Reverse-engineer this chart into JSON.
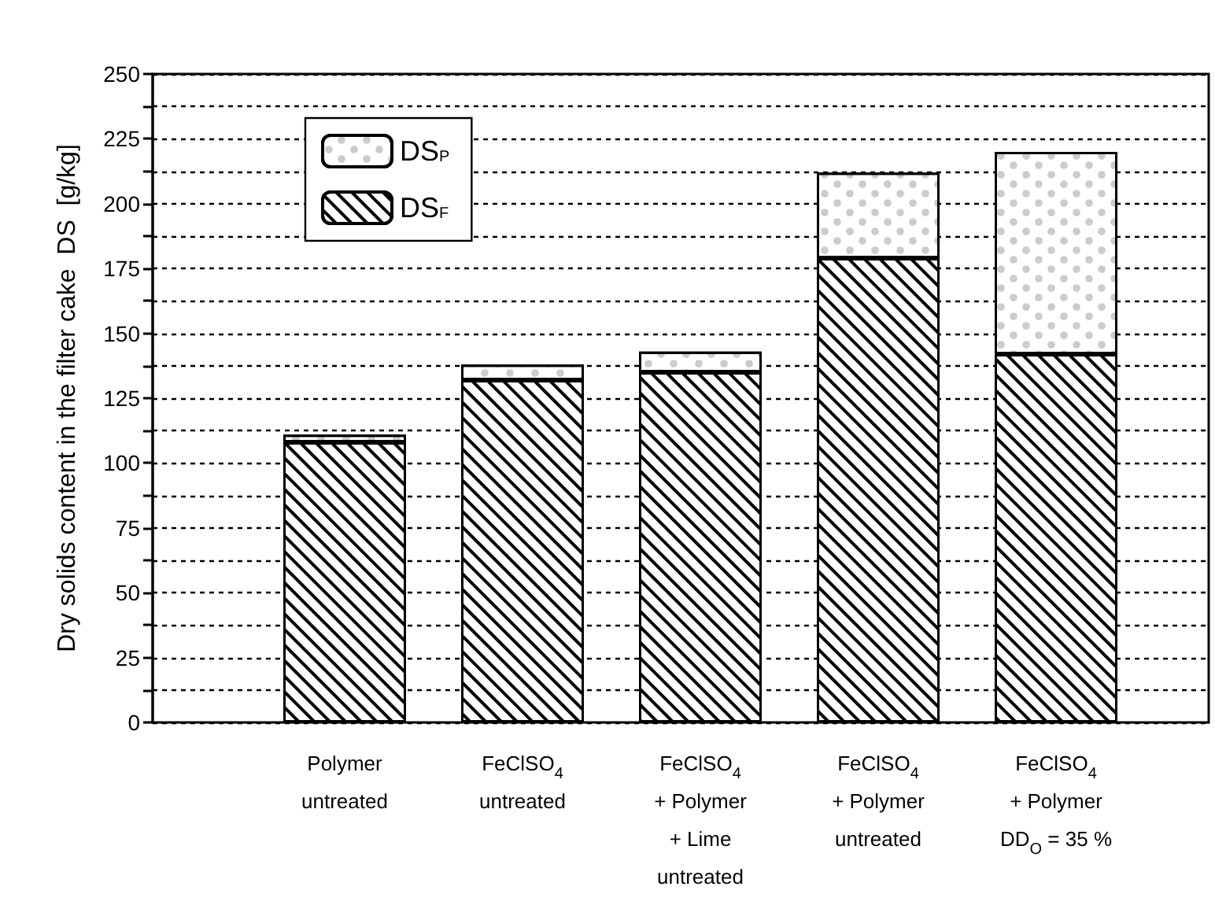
{
  "chart_data": {
    "type": "bar",
    "stacked": true,
    "ylabel": "Dry solids content in the filter cake  DS  [g/kg]",
    "categories": [
      "Polymer\nuntreated",
      "FeClSO$_{4}$\nuntreated",
      "FeClSO$_{4}$\n+ Polymer\n+ Lime\nuntreated",
      "FeClSO$_{4}$\n+ Polymer\nuntreated",
      "FeClSO$_{4}$\n+ Polymer\nDD$_{O}$ = 35 %"
    ],
    "series": [
      {
        "name": "DS$_{F}$",
        "color": "#ffffff",
        "values": [
          108,
          132,
          135,
          179,
          142
        ]
      },
      {
        "name": "DS$_{P}$",
        "color": "#ffffff",
        "values": [
          3,
          6,
          8,
          33,
          78
        ]
      }
    ],
    "ylim": [
      0,
      250
    ],
    "yticks": [
      0,
      {
        "value": 12.5,
        "label": null
      },
      25,
      {
        "value": 37.5,
        "label": null
      },
      50,
      {
        "value": 62.5,
        "label": null
      },
      75,
      {
        "value": 87.5,
        "label": null
      },
      100,
      {
        "value": 112.5,
        "label": null
      },
      125,
      {
        "value": 137.5,
        "label": null
      },
      150,
      {
        "value": 162.5,
        "label": null
      },
      175,
      {
        "value": 187.5,
        "label": null
      },
      200,
      {
        "value": 212.5,
        "label": null
      },
      225,
      {
        "value": 237.5,
        "label": null
      },
      250
    ],
    "grid": "y",
    "legend": "top left"
  }
}
